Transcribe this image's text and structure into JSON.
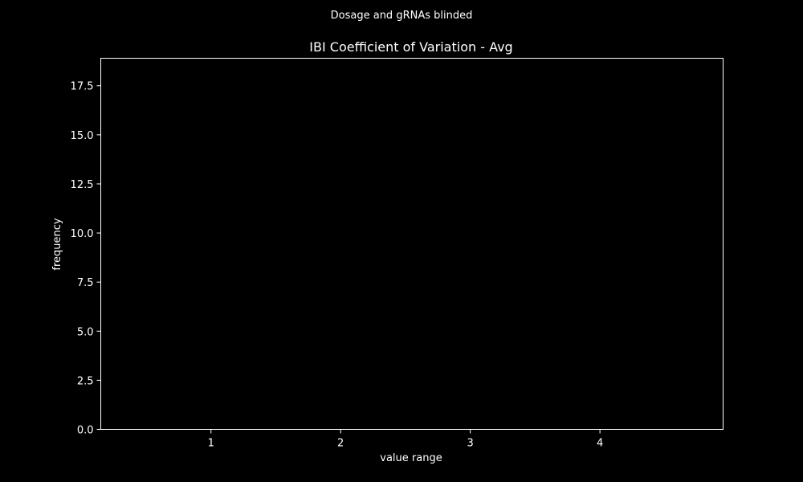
{
  "chart_data": {
    "type": "bar",
    "suptitle": "Dosage and gRNAs blinded",
    "title": "IBI Coefficient of Variation - Avg",
    "xlabel": "value range",
    "ylabel": "frequency",
    "xlim": [
      0.15,
      4.95
    ],
    "ylim": [
      0,
      18.9
    ],
    "x_ticks": [
      1,
      2,
      3,
      4
    ],
    "x_tick_labels": [
      "1",
      "2",
      "3",
      "4"
    ],
    "y_ticks": [
      0,
      2.5,
      5,
      7.5,
      10,
      12.5,
      15,
      17.5
    ],
    "y_tick_labels": [
      "0.0",
      "2.5",
      "5.0",
      "7.5",
      "10.0",
      "12.5",
      "15.0",
      "17.5"
    ],
    "series": [],
    "grid": false,
    "colors": {
      "background": "#000000",
      "foreground": "#ffffff"
    }
  }
}
